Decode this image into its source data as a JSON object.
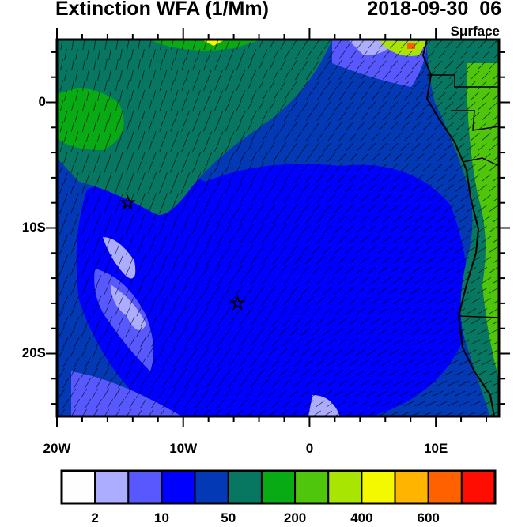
{
  "header": {
    "title": "Extinction WFA (1/Mm)",
    "time": "2018-09-30_06",
    "level": "Surface"
  },
  "axes": {
    "lon_range": [
      -20,
      15
    ],
    "lat_range": [
      -25,
      5
    ],
    "x_ticks": [
      {
        "value": -20,
        "label": "20W"
      },
      {
        "value": -10,
        "label": "10W"
      },
      {
        "value": 0,
        "label": "0"
      },
      {
        "value": 10,
        "label": "10E"
      }
    ],
    "y_ticks": [
      {
        "value": 0,
        "label": "0"
      },
      {
        "value": -10,
        "label": "10S"
      },
      {
        "value": -20,
        "label": "20S"
      }
    ]
  },
  "markers": [
    {
      "type": "star",
      "lon": -14.4,
      "lat": -8.0
    },
    {
      "type": "star",
      "lon": -5.7,
      "lat": -16.0
    }
  ],
  "colorbar": {
    "colors": [
      "#fefefe",
      "#adadff",
      "#5858ff",
      "#0000ff",
      "#0339b5",
      "#077762",
      "#09ab14",
      "#4fc60b",
      "#a8e503",
      "#f4f900",
      "#ffb400",
      "#ff6000",
      "#ff0c03"
    ],
    "labels": [
      "2",
      "10",
      "50",
      "200",
      "400",
      "600"
    ]
  }
}
